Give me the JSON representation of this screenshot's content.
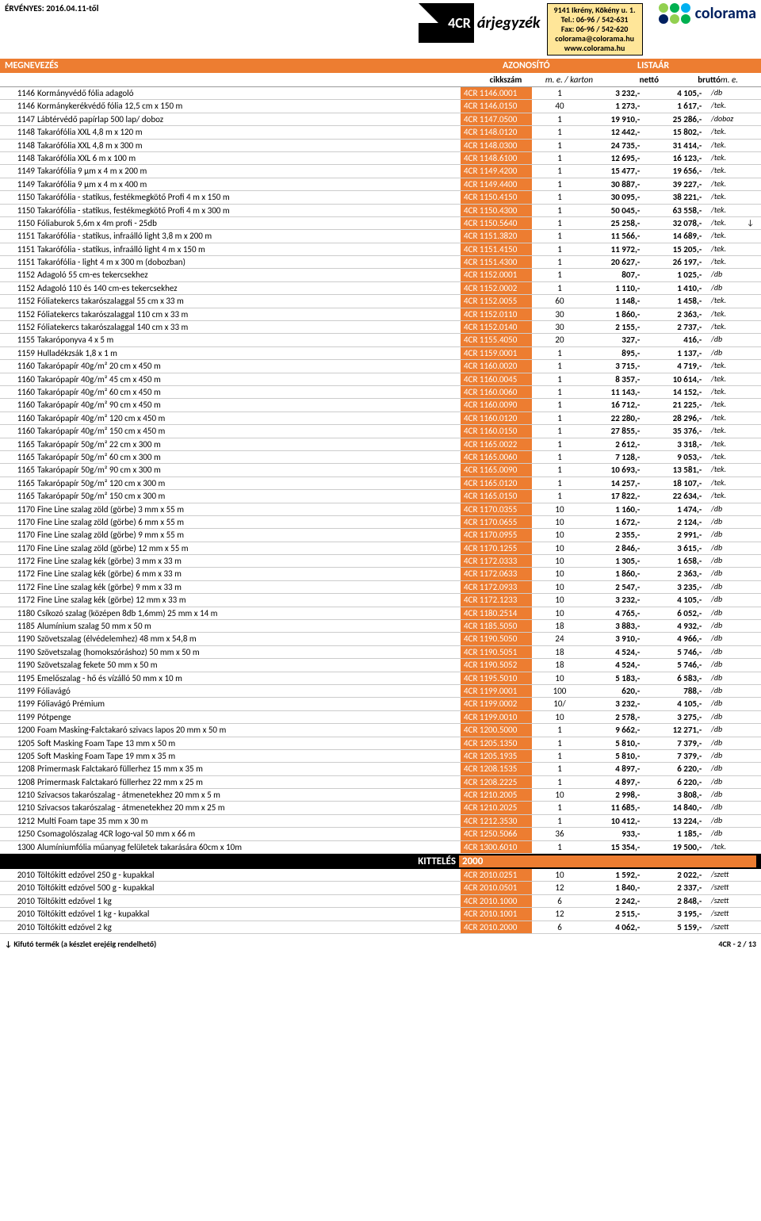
{
  "effective": "ÉRVÉNYES: 2016.04.11-től",
  "priceListLabel": "árjegyzék",
  "brand4cr": "4CR",
  "contact": {
    "address": "9141 Ikrény, Kökény u. 1.",
    "tel": "Tel.: 06-96 / 542-631",
    "fax": "Fax: 06-96 / 542-620",
    "email": "colorama@colorama.hu",
    "web": "www.colorama.hu"
  },
  "coloramaText": "colorama",
  "section": {
    "name": "MEGNEVEZÉS",
    "id": "AZONOSÍTÓ",
    "price": "LISTAÁR"
  },
  "subhead": {
    "sku": "cikkszám",
    "qty": "m. e. / karton",
    "net": "nettó",
    "gross": "bruttó",
    "unit": "m. e."
  },
  "category": {
    "label": "KITTELÉS",
    "num": "2000"
  },
  "footer": {
    "left": "↓ Kifutó termék (a készlet erejéig rendelhető)",
    "right": "4CR - 2 / 13"
  },
  "rows": [
    {
      "c": "1146",
      "n": "Kormányvédő fólia adagoló",
      "s": "4CR  1146.0001",
      "q": "1",
      "net": "3 232",
      "g": "4 105",
      "u": "/db"
    },
    {
      "c": "1146",
      "n": "Kormánykerékvédő fólia  12,5 cm x 150 m",
      "s": "4CR  1146.0150",
      "q": "40",
      "net": "1 273",
      "g": "1 617",
      "u": "/tek."
    },
    {
      "c": "1147",
      "n": "Lábtérvédő papírlap 500 lap/ doboz",
      "s": "4CR  1147.0500",
      "q": "1",
      "net": "19 910",
      "g": "25 286",
      "u": "/doboz"
    },
    {
      "c": "1148",
      "n": "Takarófólia XXL 4,8 m x 120 m",
      "s": "4CR  1148.0120",
      "q": "1",
      "net": "12 442",
      "g": "15 802",
      "u": "/tek."
    },
    {
      "c": "1148",
      "n": "Takarófólia XXL 4,8 m x 300 m",
      "s": "4CR  1148.0300",
      "q": "1",
      "net": "24 735",
      "g": "31 414",
      "u": "/tek."
    },
    {
      "c": "1148",
      "n": "Takarófólia XXL 6 m x 100 m",
      "s": "4CR  1148.6100",
      "q": "1",
      "net": "12 695",
      "g": "16 123",
      "u": "/tek."
    },
    {
      "c": "1149",
      "n": "Takarófólia 9 μm x 4 m x 200 m",
      "s": "4CR  1149.4200",
      "q": "1",
      "net": "15 477",
      "g": "19 656",
      "u": "/tek."
    },
    {
      "c": "1149",
      "n": "Takarófólia 9 μm x 4 m x 400 m",
      "s": "4CR  1149.4400",
      "q": "1",
      "net": "30 887",
      "g": "39 227",
      "u": "/tek."
    },
    {
      "c": "1150",
      "n": "Takarófólia - statikus, festékmegkötő Profi 4 m x 150 m",
      "s": "4CR  1150.4150",
      "q": "1",
      "net": "30 095",
      "g": "38 221",
      "u": "/tek."
    },
    {
      "c": "1150",
      "n": "Takarófólia - statikus, festékmegkötő Profi 4 m x 300 m",
      "s": "4CR  1150.4300",
      "q": "1",
      "net": "50 045",
      "g": "63 558",
      "u": "/tek."
    },
    {
      "c": "1150",
      "n": "Fóliaburok 5,6m x 4m profi - 25db",
      "s": "4CR  1150.5640",
      "q": "1",
      "net": "25 258",
      "g": "32 078",
      "u": "/tek.",
      "m": "↓"
    },
    {
      "c": "1151",
      "n": "Takarófólia - statikus, infraálló light 3,8 m x 200 m",
      "s": "4CR  1151.3820",
      "q": "1",
      "net": "11 566",
      "g": "14 689",
      "u": "/tek."
    },
    {
      "c": "1151",
      "n": "Takarófólia - statikus, infraálló light 4 m x 150 m",
      "s": "4CR  1151.4150",
      "q": "1",
      "net": "11 972",
      "g": "15 205",
      "u": "/tek."
    },
    {
      "c": "1151",
      "n": "Takarófólia - light  4 m x 300 m (dobozban)",
      "s": "4CR  1151.4300",
      "q": "1",
      "net": "20 627",
      "g": "26 197",
      "u": "/tek."
    },
    {
      "c": "1152",
      "n": "Adagoló 55 cm-es tekercsekhez",
      "s": "4CR  1152.0001",
      "q": "1",
      "net": "807",
      "g": "1 025",
      "u": "/db"
    },
    {
      "c": "1152",
      "n": "Adagoló 110 és 140 cm-es tekercsekhez",
      "s": "4CR  1152.0002",
      "q": "1",
      "net": "1 110",
      "g": "1 410",
      "u": "/db"
    },
    {
      "c": "1152",
      "n": "Fóliatekercs takarószalaggal  55 cm x 33 m",
      "s": "4CR  1152.0055",
      "q": "60",
      "net": "1 148",
      "g": "1 458",
      "u": "/tek."
    },
    {
      "c": "1152",
      "n": "Fóliatekercs takarószalaggal  110 cm x 33 m",
      "s": "4CR  1152.0110",
      "q": "30",
      "net": "1 860",
      "g": "2 363",
      "u": "/tek."
    },
    {
      "c": "1152",
      "n": "Fóliatekercs takarószalaggal  140 cm x 33 m",
      "s": "4CR  1152.0140",
      "q": "30",
      "net": "2 155",
      "g": "2 737",
      "u": "/tek."
    },
    {
      "c": "1155",
      "n": "Takaróponyva  4 x 5 m",
      "s": "4CR  1155.4050",
      "q": "20",
      "net": "327",
      "g": "416",
      "u": "/db"
    },
    {
      "c": "1159",
      "n": "Hulladékzsák 1,8 x 1 m",
      "s": "4CR  1159.0001",
      "q": "1",
      "net": "895",
      "g": "1 137",
      "u": "/db"
    },
    {
      "c": "1160",
      "n": "Takarópapír 40g/m²  20 cm x 450 m",
      "s": "4CR  1160.0020",
      "q": "1",
      "net": "3 715",
      "g": "4 719",
      "u": "/tek."
    },
    {
      "c": "1160",
      "n": "Takarópapír 40g/m²  45 cm x 450 m",
      "s": "4CR  1160.0045",
      "q": "1",
      "net": "8 357",
      "g": "10 614",
      "u": "/tek."
    },
    {
      "c": "1160",
      "n": "Takarópapír 40g/m²  60 cm x 450 m",
      "s": "4CR  1160.0060",
      "q": "1",
      "net": "11 143",
      "g": "14 152",
      "u": "/tek."
    },
    {
      "c": "1160",
      "n": "Takarópapír 40g/m²  90 cm x 450 m",
      "s": "4CR  1160.0090",
      "q": "1",
      "net": "16 712",
      "g": "21 225",
      "u": "/tek."
    },
    {
      "c": "1160",
      "n": "Takarópapír 40g/m²  120 cm x 450 m",
      "s": "4CR  1160.0120",
      "q": "1",
      "net": "22 280",
      "g": "28 296",
      "u": "/tek."
    },
    {
      "c": "1160",
      "n": "Takarópapír 40g/m²  150 cm x 450 m",
      "s": "4CR  1160.0150",
      "q": "1",
      "net": "27 855",
      "g": "35 376",
      "u": "/tek."
    },
    {
      "c": "1165",
      "n": "Takarópapír 50g/m²  22 cm x 300 m",
      "s": "4CR  1165.0022",
      "q": "1",
      "net": "2 612",
      "g": "3 318",
      "u": "/tek."
    },
    {
      "c": "1165",
      "n": "Takarópapír 50g/m²  60 cm x 300 m",
      "s": "4CR  1165.0060",
      "q": "1",
      "net": "7 128",
      "g": "9 053",
      "u": "/tek."
    },
    {
      "c": "1165",
      "n": "Takarópapír 50g/m²  90 cm x 300 m",
      "s": "4CR  1165.0090",
      "q": "1",
      "net": "10 693",
      "g": "13 581",
      "u": "/tek."
    },
    {
      "c": "1165",
      "n": "Takarópapír 50g/m²  120 cm x 300 m",
      "s": "4CR  1165.0120",
      "q": "1",
      "net": "14 257",
      "g": "18 107",
      "u": "/tek."
    },
    {
      "c": "1165",
      "n": "Takarópapír 50g/m²  150 cm x 300 m",
      "s": "4CR  1165.0150",
      "q": "1",
      "net": "17 822",
      "g": "22 634",
      "u": "/tek."
    },
    {
      "c": "1170",
      "n": "Fine Line szalag zöld (görbe)  3 mm x 55 m",
      "s": "4CR  1170.0355",
      "q": "10",
      "net": "1 160",
      "g": "1 474",
      "u": "/db"
    },
    {
      "c": "1170",
      "n": "Fine Line szalag zöld (görbe)  6 mm x 55 m",
      "s": "4CR  1170.0655",
      "q": "10",
      "net": "1 672",
      "g": "2 124",
      "u": "/db"
    },
    {
      "c": "1170",
      "n": "Fine Line szalag zöld (görbe)  9 mm x 55 m",
      "s": "4CR  1170.0955",
      "q": "10",
      "net": "2 355",
      "g": "2 991",
      "u": "/db"
    },
    {
      "c": "1170",
      "n": "Fine Line szalag zöld (görbe)  12 mm x 55 m",
      "s": "4CR  1170.1255",
      "q": "10",
      "net": "2 846",
      "g": "3 615",
      "u": "/db"
    },
    {
      "c": "1172",
      "n": "Fine Line szalag kék  (görbe)  3 mm x 33 m",
      "s": "4CR  1172.0333",
      "q": "10",
      "net": "1 305",
      "g": "1 658",
      "u": "/db"
    },
    {
      "c": "1172",
      "n": "Fine Line szalag kék  (görbe)  6 mm x 33 m",
      "s": "4CR  1172.0633",
      "q": "10",
      "net": "1 860",
      "g": "2 363",
      "u": "/db"
    },
    {
      "c": "1172",
      "n": "Fine Line szalag kék  (görbe)  9 mm x 33 m",
      "s": "4CR  1172.0933",
      "q": "10",
      "net": "2 547",
      "g": "3 235",
      "u": "/db"
    },
    {
      "c": "1172",
      "n": "Fine Line szalag kék  (görbe)  12 mm x 33 m",
      "s": "4CR  1172.1233",
      "q": "10",
      "net": "3 232",
      "g": "4 105",
      "u": "/db"
    },
    {
      "c": "1180",
      "n": "Csíkozó szalag (középen 8db 1,6mm)  25 mm x 14 m",
      "s": "4CR  1180.2514",
      "q": "10",
      "net": "4 765",
      "g": "6 052",
      "u": "/db"
    },
    {
      "c": "1185",
      "n": "Alumínium szalag  50 mm x 50 m",
      "s": "4CR  1185.5050",
      "q": "18",
      "net": "3 883",
      "g": "4 932",
      "u": "/db"
    },
    {
      "c": "1190",
      "n": "Szövetszalag (élvédelemhez)  48 mm x 54,8 m",
      "s": "4CR  1190.5050",
      "q": "24",
      "net": "3 910",
      "g": "4 966",
      "u": "/db"
    },
    {
      "c": "1190",
      "n": "Szövetszalag (homokszóráshoz)  50 mm x 50 m",
      "s": "4CR  1190.5051",
      "q": "18",
      "net": "4 524",
      "g": "5 746",
      "u": "/db"
    },
    {
      "c": "1190",
      "n": "Szövetszalag fekete  50 mm x 50 m",
      "s": "4CR  1190.5052",
      "q": "18",
      "net": "4 524",
      "g": "5 746",
      "u": "/db"
    },
    {
      "c": "1195",
      "n": "Emelőszalag - hő és vízálló  50 mm x 10 m",
      "s": "4CR  1195.5010",
      "q": "10",
      "net": "5 183",
      "g": "6 583",
      "u": "/db"
    },
    {
      "c": "1199",
      "n": "Fóliavágó",
      "s": "4CR  1199.0001",
      "q": "100",
      "net": "620",
      "g": "788",
      "u": "/db"
    },
    {
      "c": "1199",
      "n": "Fóliavágó Prémium",
      "s": "4CR  1199.0002",
      "q": "10/",
      "net": "3 232",
      "g": "4 105",
      "u": "/db"
    },
    {
      "c": "1199",
      "n": "Pótpenge",
      "s": "4CR  1199.0010",
      "q": "10",
      "net": "2 578",
      "g": "3 275",
      "u": "/db"
    },
    {
      "c": "1200",
      "n": "Foam Masking-Falctakaró szivacs lapos  20 mm x 50 m",
      "s": "4CR  1200.5000",
      "q": "1",
      "net": "9 662",
      "g": "12 271",
      "u": "/db"
    },
    {
      "c": "1205",
      "n": "Soft Masking Foam Tape  13 mm x 50 m",
      "s": "4CR  1205.1350",
      "q": "1",
      "net": "5 810",
      "g": "7 379",
      "u": "/db"
    },
    {
      "c": "1205",
      "n": "Soft Masking Foam Tape  19 mm x 35 m",
      "s": "4CR  1205.1935",
      "q": "1",
      "net": "5 810",
      "g": "7 379",
      "u": "/db"
    },
    {
      "c": "1208",
      "n": "Primermask Falctakaró füllerhez 15 mm x 35 m",
      "s": "4CR  1208.1535",
      "q": "1",
      "net": "4 897",
      "g": "6 220",
      "u": "/db"
    },
    {
      "c": "1208",
      "n": "Primermask Falctakaró füllerhez 22 mm x 25 m",
      "s": "4CR  1208.2225",
      "q": "1",
      "net": "4 897",
      "g": "6 220",
      "u": "/db"
    },
    {
      "c": "1210",
      "n": "Szivacsos takarószalag - átmenetekhez  20 mm x 5 m",
      "s": "4CR  1210.2005",
      "q": "10",
      "net": "2 998",
      "g": "3 808",
      "u": "/db"
    },
    {
      "c": "1210",
      "n": "Szivacsos takarószalag - átmenetekhez 20 mm x 25 m",
      "s": "4CR  1210.2025",
      "q": "1",
      "net": "11 685",
      "g": "14 840",
      "u": "/db"
    },
    {
      "c": "1212",
      "n": "Multi Foam tape 35 mm x 30 m",
      "s": "4CR  1212.3530",
      "q": "1",
      "net": "10 412",
      "g": "13 224",
      "u": "/db"
    },
    {
      "c": "1250",
      "n": "Csomagolószalag 4CR logo-val   50 mm x 66 m",
      "s": "4CR  1250.5066",
      "q": "36",
      "net": "933",
      "g": "1 185",
      "u": "/db"
    },
    {
      "c": "1300",
      "n": "Alumíniumfólia műanyag felületek takarására 60cm x 10m",
      "s": "4CR  1300.6010",
      "q": "1",
      "net": "15 354",
      "g": "19 500",
      "u": "/tek."
    }
  ],
  "rows2": [
    {
      "c": "2010",
      "n": "Töltőkitt edzővel 250 g - kupakkal",
      "s": "4CR  2010.0251",
      "q": "10",
      "net": "1 592",
      "g": "2 022",
      "u": "/szett"
    },
    {
      "c": "2010",
      "n": "Töltőkitt edzővel 500 g - kupakkal",
      "s": "4CR  2010.0501",
      "q": "12",
      "net": "1 840",
      "g": "2 337",
      "u": "/szett"
    },
    {
      "c": "2010",
      "n": "Töltőkitt edzővel 1 kg",
      "s": "4CR  2010.1000",
      "q": "6",
      "net": "2 242",
      "g": "2 848",
      "u": "/szett"
    },
    {
      "c": "2010",
      "n": "Töltőkitt edzővel 1 kg - kupakkal",
      "s": "4CR  2010.1001",
      "q": "12",
      "net": "2 515",
      "g": "3 195",
      "u": "/szett"
    },
    {
      "c": "2010",
      "n": "Töltőkitt edzővel 2 kg",
      "s": "4CR  2010.2000",
      "q": "6",
      "net": "4 062",
      "g": "5 159",
      "u": "/szett"
    }
  ]
}
